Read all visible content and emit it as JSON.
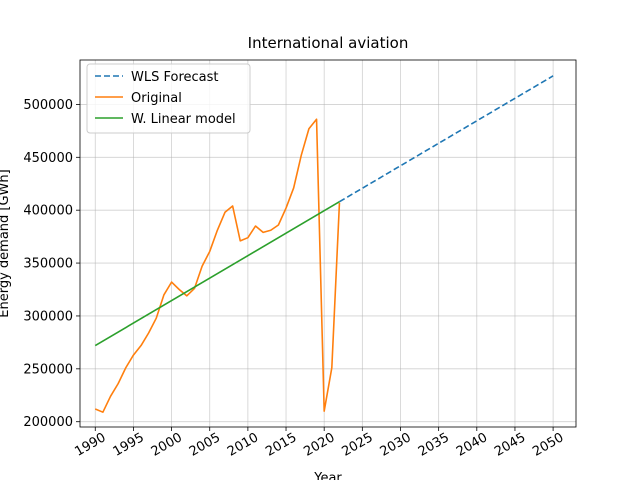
{
  "chart_data": {
    "type": "line",
    "title": "International aviation",
    "xlabel": "Year",
    "ylabel": "Energy demand [GWh]",
    "xlim": [
      1988,
      2053
    ],
    "ylim": [
      195000,
      542000
    ],
    "xticks": [
      1990,
      1995,
      2000,
      2005,
      2010,
      2015,
      2020,
      2025,
      2030,
      2035,
      2040,
      2045,
      2050
    ],
    "yticks": [
      200000,
      250000,
      300000,
      350000,
      400000,
      450000,
      500000
    ],
    "grid": true,
    "legend_position": "upper-left",
    "series": [
      {
        "name": "WLS Forecast",
        "color": "#1f77b4",
        "style": "dashed",
        "x": [
          2022,
          2050
        ],
        "y": [
          408000,
          527000
        ]
      },
      {
        "name": "Original",
        "color": "#ff7f0e",
        "style": "solid",
        "x": [
          1990,
          1991,
          1992,
          1993,
          1994,
          1995,
          1996,
          1997,
          1998,
          1999,
          2000,
          2001,
          2002,
          2003,
          2004,
          2005,
          2006,
          2007,
          2008,
          2009,
          2010,
          2011,
          2012,
          2013,
          2014,
          2015,
          2016,
          2017,
          2018,
          2019,
          2020,
          2021,
          2022
        ],
        "y": [
          212000,
          209000,
          224000,
          236000,
          251000,
          263000,
          272000,
          284000,
          298000,
          320000,
          332000,
          325000,
          319000,
          326000,
          347000,
          361000,
          381000,
          398000,
          404000,
          371000,
          374000,
          385000,
          379000,
          381000,
          386000,
          402000,
          421000,
          452000,
          477000,
          486000,
          210000,
          251000,
          407000
        ]
      },
      {
        "name": "W. Linear model",
        "color": "#2ca02c",
        "style": "solid",
        "x": [
          1990,
          2022
        ],
        "y": [
          272000,
          408000
        ]
      }
    ]
  }
}
